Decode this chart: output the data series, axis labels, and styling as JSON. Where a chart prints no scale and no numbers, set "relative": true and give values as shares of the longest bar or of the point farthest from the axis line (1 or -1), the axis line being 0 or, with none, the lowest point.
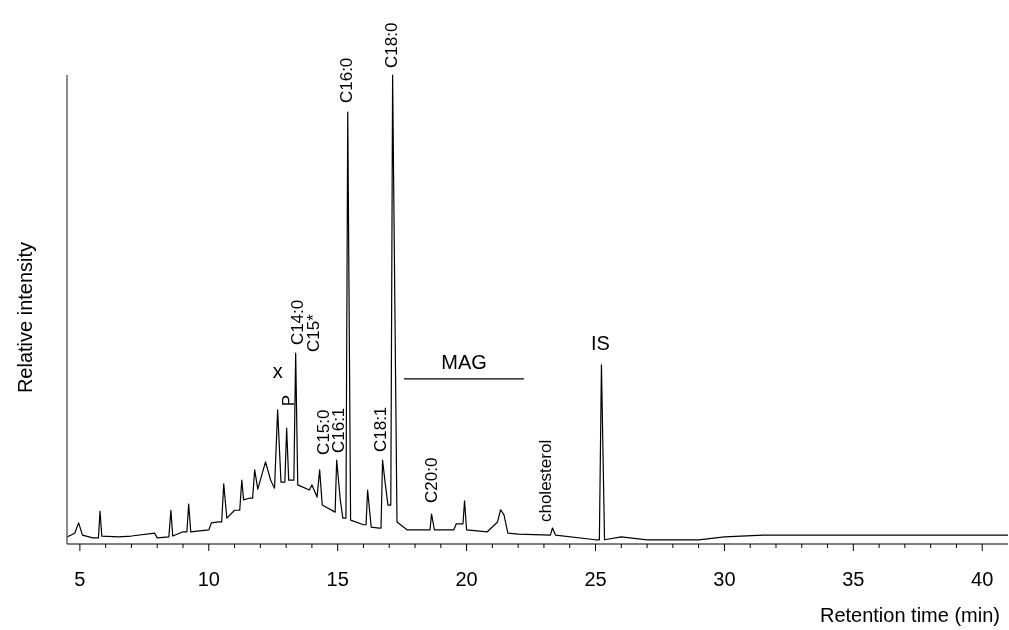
{
  "chart_data": {
    "type": "line",
    "relative": true,
    "xlabel": "Retention time (min)",
    "ylabel": "Relative intensity",
    "xlim": [
      4.5,
      41
    ],
    "xticks": [
      5,
      {
        "value": 6,
        "label": null
      },
      {
        "value": 7,
        "label": null
      },
      {
        "value": 8,
        "label": null
      },
      {
        "value": 9,
        "label": null
      },
      10,
      {
        "value": 11,
        "label": null
      },
      {
        "value": 12,
        "label": null
      },
      {
        "value": 13,
        "label": null
      },
      {
        "value": 14,
        "label": null
      },
      15,
      {
        "value": 16,
        "label": null
      },
      {
        "value": 17,
        "label": null
      },
      {
        "value": 18,
        "label": null
      },
      {
        "value": 19,
        "label": null
      },
      20,
      {
        "value": 21,
        "label": null
      },
      {
        "value": 22,
        "label": null
      },
      {
        "value": 23,
        "label": null
      },
      {
        "value": 24,
        "label": null
      },
      25,
      {
        "value": 26,
        "label": null
      },
      {
        "value": 27,
        "label": null
      },
      {
        "value": 28,
        "label": null
      },
      {
        "value": 29,
        "label": null
      },
      30,
      {
        "value": 31,
        "label": null
      },
      {
        "value": 32,
        "label": null
      },
      {
        "value": 33,
        "label": null
      },
      {
        "value": 34,
        "label": null
      },
      35,
      {
        "value": 36,
        "label": null
      },
      {
        "value": 37,
        "label": null
      },
      {
        "value": 38,
        "label": null
      },
      {
        "value": 39,
        "label": null
      },
      40
    ],
    "grid": false,
    "marker": "none",
    "line_style": "solid",
    "series": [
      {
        "color": "#000000",
        "x": [
          4.5,
          4.8,
          4.95,
          5.1,
          5.5,
          5.72,
          5.78,
          5.85,
          6.5,
          7.0,
          7.9,
          8.0,
          8.45,
          8.53,
          8.6,
          9.0,
          9.15,
          9.22,
          9.3,
          10.0,
          10.1,
          10.4,
          10.5,
          10.58,
          10.7,
          11.0,
          11.2,
          11.28,
          11.35,
          11.6,
          11.7,
          11.78,
          11.9,
          12.2,
          12.4,
          12.55,
          12.67,
          12.8,
          12.95,
          13.02,
          13.1,
          13.3,
          13.37,
          13.45,
          13.9,
          14.0,
          14.2,
          14.3,
          14.4,
          14.9,
          14.96,
          15.1,
          15.2,
          15.32,
          15.39,
          15.5,
          16.0,
          16.1,
          16.16,
          16.3,
          16.6,
          16.68,
          16.74,
          16.85,
          16.95,
          17.06,
          17.13,
          17.3,
          17.7,
          18.3,
          18.58,
          18.64,
          18.75,
          19.5,
          19.6,
          19.86,
          19.92,
          20.0,
          20.8,
          21.2,
          21.32,
          21.45,
          21.6,
          22.0,
          23.25,
          23.33,
          23.45,
          25.0,
          25.15,
          25.23,
          25.35,
          26.0,
          27.0,
          29.0,
          30.0,
          31.5,
          41.0
        ],
        "values": [
          0.015,
          0.023,
          0.045,
          0.019,
          0.013,
          0.013,
          0.07,
          0.017,
          0.015,
          0.017,
          0.023,
          0.013,
          0.015,
          0.072,
          0.017,
          0.026,
          0.026,
          0.085,
          0.026,
          0.03,
          0.045,
          0.047,
          0.047,
          0.128,
          0.055,
          0.072,
          0.072,
          0.136,
          0.094,
          0.098,
          0.098,
          0.158,
          0.117,
          0.175,
          0.136,
          0.119,
          0.286,
          0.132,
          0.132,
          0.247,
          0.136,
          0.136,
          0.407,
          0.126,
          0.115,
          0.126,
          0.1,
          0.158,
          0.083,
          0.068,
          0.179,
          0.094,
          0.055,
          0.055,
          0.921,
          0.051,
          0.041,
          0.041,
          0.115,
          0.036,
          0.034,
          0.034,
          0.179,
          0.126,
          0.083,
          0.083,
          1,
          0.047,
          0.03,
          0.03,
          0.03,
          0.064,
          0.03,
          0.03,
          0.043,
          0.043,
          0.092,
          0.03,
          0.026,
          0.047,
          0.073,
          0.062,
          0.023,
          0.021,
          0.019,
          0.034,
          0.019,
          0.009,
          0.009,
          0.382,
          0.009,
          0.015,
          0.009,
          0.009,
          0.015,
          0.019,
          0.019
        ]
      },
      {
        "type": "line",
        "color": "#000000",
        "x": [
          17.57,
          22.22
        ],
        "values": [
          0.352,
          0.352
        ]
      }
    ],
    "annotations": [
      {
        "text": "x",
        "x": 12.67,
        "y": 0.286
      },
      {
        "text": "P",
        "x": 13.02,
        "y": 0.247
      },
      {
        "text": "C14:0",
        "x": 13.37,
        "y": 0.407
      },
      "C15*",
      {
        "text": "C15:0",
        "x": 14.3,
        "y": 0.158
      },
      {
        "text": "C16:1",
        "x": 14.96,
        "y": 0.179
      },
      {
        "text": "C16:0",
        "x": 15.39,
        "y": 0.921
      },
      {
        "text": "C18:1",
        "x": 16.74,
        "y": 0.179
      },
      {
        "text": "C18:0",
        "x": 17.13,
        "y": 1
      },
      {
        "text": "C20:0",
        "x": 18.64,
        "y": 0.064
      },
      {
        "text": "cholesterol",
        "x": 23.33,
        "y": 0.034
      },
      {
        "text": "IS",
        "x": 25.23,
        "y": 0.382
      },
      {
        "text": "MAG",
        "x": 19.9,
        "y": 0.352
      }
    ]
  }
}
